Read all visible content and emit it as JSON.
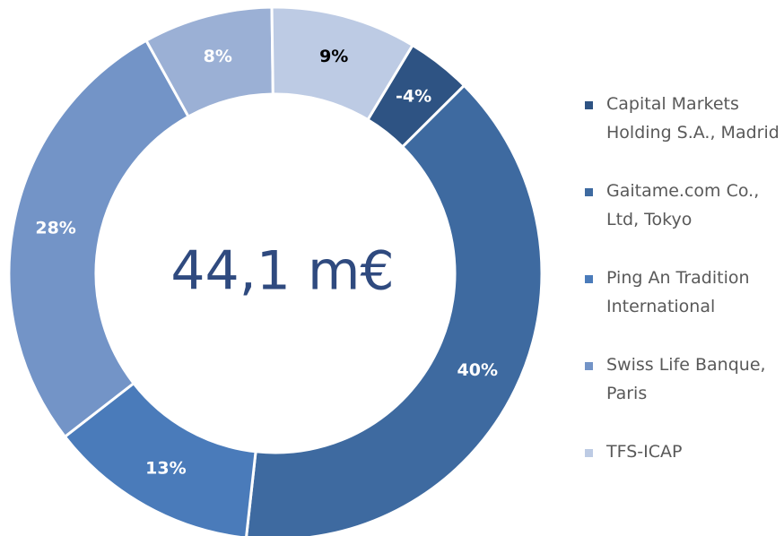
{
  "chart_data": {
    "type": "donut",
    "center_label": "44,1 m€",
    "categories": [
      "Capital Markets Holding S.A., Madrid",
      "Gaitame.com Co., Ltd, Tokyo",
      "Ping An Tradition International",
      "Swiss Life Banque, Paris",
      null,
      "TFS-ICAP"
    ],
    "values": [
      -4,
      40,
      13,
      28,
      8,
      9
    ],
    "value_labels": [
      "-4%",
      "40%",
      "13%",
      "28%",
      "8%",
      "9%"
    ],
    "colors": [
      "#2e5383",
      "#3e6aa0",
      "#4a7bba",
      "#7394c7",
      "#9bb0d5",
      "#bdcbe4"
    ],
    "label_colors": [
      "#ffffff",
      "#ffffff",
      "#ffffff",
      "#ffffff",
      "#ffffff",
      "#000000"
    ],
    "legend": "right"
  }
}
